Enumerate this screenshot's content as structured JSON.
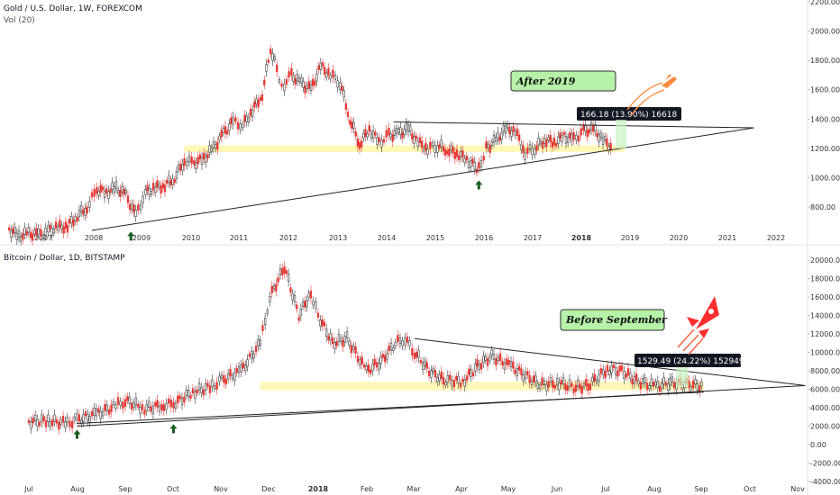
{
  "chart_data": [
    {
      "type": "candlestick",
      "title": "Gold / U.S. Dollar, 1W, FOREXCOM",
      "subtitle": "Vol (20)",
      "x_ticks": [
        "2007",
        "2008",
        "2009",
        "2010",
        "2011",
        "2012",
        "2013",
        "2014",
        "2015",
        "2016",
        "2017",
        "2018",
        "2019",
        "2020",
        "2021",
        "2022"
      ],
      "y_ticks": [
        "2200.00",
        "2000.00",
        "1800.00",
        "1600.00",
        "1400.00",
        "1200.00",
        "1000.00",
        "800.00"
      ],
      "ylim": [
        640,
        2200
      ],
      "xlim": [
        2006.3,
        2022.8
      ],
      "series": [
        {
          "x": [
            2006.3,
            2006.5,
            2006.7,
            2006.9,
            2007.1,
            2007.3,
            2007.5,
            2007.7,
            2007.9,
            2008.1,
            2008.3,
            2008.5,
            2008.7,
            2008.9,
            2009.1,
            2009.3,
            2009.5,
            2009.7,
            2009.9,
            2010.1,
            2010.3,
            2010.5,
            2010.7,
            2010.9,
            2011.1,
            2011.3,
            2011.5,
            2011.67,
            2011.8,
            2011.9,
            2012.1,
            2012.3,
            2012.5,
            2012.7,
            2012.9,
            2013.1,
            2013.3,
            2013.5,
            2013.7,
            2013.9,
            2014.1,
            2014.3,
            2014.5,
            2014.7,
            2014.9,
            2015.1,
            2015.3,
            2015.5,
            2015.7,
            2015.95,
            2016.1,
            2016.3,
            2016.5,
            2016.7,
            2016.9,
            2017.1,
            2017.3,
            2017.5,
            2017.7,
            2017.9,
            2018.1,
            2018.3,
            2018.5,
            2018.7
          ],
          "y": [
            650,
            600,
            620,
            610,
            640,
            660,
            670,
            740,
            800,
            920,
            900,
            930,
            880,
            740,
            900,
            930,
            950,
            1000,
            1120,
            1100,
            1130,
            1200,
            1300,
            1380,
            1360,
            1460,
            1570,
            1880,
            1750,
            1620,
            1700,
            1640,
            1600,
            1760,
            1700,
            1650,
            1400,
            1230,
            1330,
            1240,
            1290,
            1300,
            1330,
            1240,
            1200,
            1220,
            1190,
            1170,
            1120,
            1060,
            1200,
            1250,
            1330,
            1320,
            1170,
            1200,
            1260,
            1240,
            1280,
            1260,
            1320,
            1330,
            1260,
            1200
          ]
        }
      ],
      "annotations": {
        "callout": "After 2019",
        "measure": "166.18 (13.90%) 16618"
      },
      "lines": [
        {
          "name": "support",
          "x": [
            2008.0,
            2021.6
          ],
          "y": [
            640,
            1340
          ]
        },
        {
          "name": "resistance",
          "x": [
            2014.2,
            2021.6
          ],
          "y": [
            1380,
            1340
          ]
        }
      ],
      "zone": {
        "x": [
          2009.9,
          2018.95
        ],
        "y": [
          1175,
          1220
        ]
      },
      "markers": [
        {
          "x": 2008.8,
          "y": 650
        },
        {
          "x": 2015.95,
          "y": 1000
        }
      ]
    },
    {
      "type": "candlestick",
      "title": "Bitcoin / Dollar, 1D, BITSTAMP",
      "x_ticks": [
        "Jul",
        "Aug",
        "Sep",
        "Oct",
        "Nov",
        "Dec",
        "2018",
        "Feb",
        "Mar",
        "Apr",
        "May",
        "Jun",
        "Jul",
        "Aug",
        "Sep",
        "Oct",
        "Nov"
      ],
      "y_ticks": [
        "20000.00",
        "18000.00",
        "16000.00",
        "14000.00",
        "12000.00",
        "10000.00",
        "8000.00",
        "6000.00",
        "4000.00",
        "2000.00",
        "0.00",
        "-2000.00",
        "-4000.00"
      ],
      "ylim": [
        -4000,
        20500
      ],
      "xlim": [
        0,
        17
      ],
      "series": [
        {
          "x": [
            0,
            0.4,
            0.8,
            1.0,
            1.4,
            1.8,
            2.0,
            2.4,
            2.8,
            3.0,
            3.4,
            3.8,
            4.0,
            4.4,
            4.8,
            5.0,
            5.3,
            5.6,
            5.85,
            6.0,
            6.3,
            6.6,
            7.0,
            7.3,
            7.6,
            7.8,
            8.0,
            8.3,
            8.6,
            9.0,
            9.3,
            9.6,
            10.0,
            10.3,
            10.6,
            11.0,
            11.3,
            11.6,
            12.0,
            12.3,
            12.6,
            13.0,
            13.3,
            13.6,
            14.0
          ],
          "y": [
            2500,
            2600,
            2300,
            2700,
            3300,
            4200,
            4800,
            3900,
            4300,
            4400,
            5700,
            6300,
            7000,
            8000,
            11000,
            16000,
            19300,
            14000,
            16500,
            14000,
            11000,
            11500,
            8000,
            9000,
            11000,
            11500,
            10000,
            8000,
            7000,
            6800,
            8500,
            9600,
            8500,
            7500,
            6500,
            6700,
            6200,
            6400,
            8200,
            8000,
            6900,
            6300,
            6700,
            6600,
            6300
          ]
        }
      ],
      "annotations": {
        "callout": "Before September",
        "measure": "1529.49 (24.22%) 152949"
      },
      "lines": [
        {
          "name": "support",
          "x": [
            1.0,
            16.1
          ],
          "y": [
            2000,
            6400
          ]
        },
        {
          "name": "support2",
          "x": [
            1.0,
            14.0
          ],
          "y": [
            2300,
            5700
          ]
        },
        {
          "name": "resistance",
          "x": [
            8.0,
            16.1
          ],
          "y": [
            11500,
            6400
          ]
        }
      ],
      "zone": {
        "x": [
          4.8,
          14.0
        ],
        "y": [
          5900,
          6800
        ]
      },
      "markers": [
        {
          "x": 1.0,
          "y": 1900
        },
        {
          "x": 3.0,
          "y": 2500
        }
      ]
    }
  ]
}
